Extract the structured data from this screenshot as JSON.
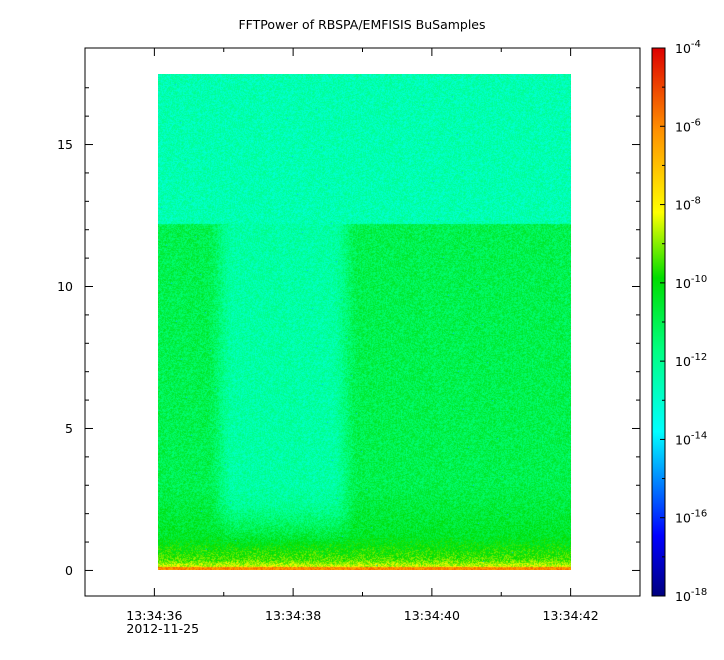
{
  "chart_data": {
    "type": "heatmap",
    "title": "FFTPower of RBSPA/EMFISIS  BuSamples",
    "xlabel": "",
    "ylabel": "",
    "x_ticks": [
      {
        "value": "13:34:36",
        "sublabel": "2012-11-25"
      },
      {
        "value": "13:34:38",
        "sublabel": ""
      },
      {
        "value": "13:34:40",
        "sublabel": ""
      },
      {
        "value": "13:34:42",
        "sublabel": ""
      }
    ],
    "xlim": [
      "13:34:35.0",
      "13:34:43.0"
    ],
    "y_ticks": [
      0,
      5,
      10,
      15
    ],
    "ylim": [
      -0.9,
      18.4
    ],
    "data_extent": {
      "x_start": "13:34:36.05",
      "x_end": "13:34:42.0",
      "y_start": 0,
      "y_end": 17.5
    },
    "colorbar": {
      "scale": "log",
      "range": [
        1e-18,
        0.0001
      ],
      "tick_exponents": [
        -18,
        -16,
        -14,
        -12,
        -10,
        -8,
        -6,
        -4
      ],
      "tick_base": "10",
      "colormap": "rainbow"
    },
    "regions": [
      {
        "desc": "upper band",
        "y_range": [
          12.2,
          17.5
        ],
        "t_range": [
          "13:34:36.05",
          "13:34:42.0"
        ],
        "approx_log10_power": -12.5
      },
      {
        "desc": "lower band",
        "y_range": [
          0.3,
          12.2
        ],
        "t_range": [
          "13:34:36.05",
          "13:34:42.0"
        ],
        "approx_log10_power": -11
      },
      {
        "desc": "quieter column",
        "y_range": [
          0.3,
          12.2
        ],
        "t_range": [
          "13:34:36.9",
          "13:34:38.8"
        ],
        "approx_log10_power": -12.3
      },
      {
        "desc": "low-frequency enhancement",
        "y_range": [
          0,
          0.5
        ],
        "t_range": [
          "13:34:36.05",
          "13:34:42.0"
        ],
        "approx_log10_power": -8
      }
    ],
    "grid": false,
    "legend": "colorbar-right"
  }
}
